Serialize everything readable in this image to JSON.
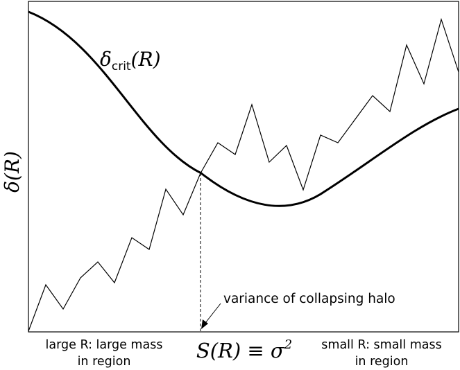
{
  "diagram": {
    "curve_label": {
      "symbol": "δ",
      "subscript": "crit",
      "argument": "(R)"
    },
    "y_axis_label": {
      "symbol": "δ",
      "argument": "(R)"
    },
    "x_axis_label": {
      "main": "S(R) ≡ σ",
      "superscript": "2"
    },
    "annotation": "variance of collapsing halo",
    "left_caption": {
      "line1": "large R: large mass",
      "line2": "in region"
    },
    "right_caption": {
      "line1": "small R: small mass",
      "line2": "in region"
    },
    "colors": {
      "line": "#000000",
      "background": "#ffffff"
    }
  }
}
